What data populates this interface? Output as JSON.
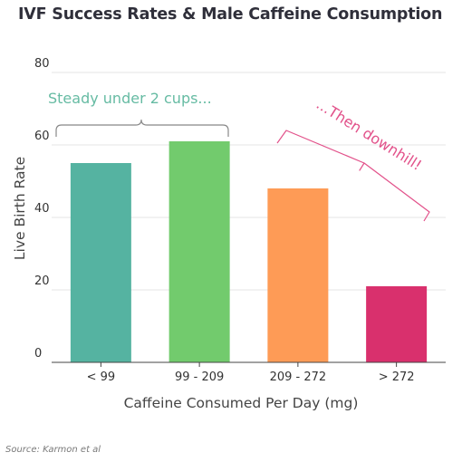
{
  "chart_data": {
    "type": "bar",
    "title": "IVF Success Rates & Male Caffeine Consumption",
    "xlabel": "Caffeine Consumed Per Day (mg)",
    "ylabel": "Live Birth Rate",
    "categories": [
      "< 99",
      "99 - 209",
      "209 - 272",
      "> 272"
    ],
    "values": [
      55,
      61,
      48,
      21
    ],
    "ylim": [
      0,
      80
    ],
    "yticks": [
      0,
      20,
      40,
      60,
      80
    ],
    "bar_colors": [
      "#55b3a1",
      "#72cb6d",
      "#fe9b56",
      "#d9306d"
    ],
    "grid": true,
    "annotations": [
      {
        "text": "Steady under 2 cups...",
        "color": "#66bba3"
      },
      {
        "text": "...Then downhill!",
        "color": "#e2518a"
      }
    ],
    "source": "Source: Karmon et al"
  }
}
